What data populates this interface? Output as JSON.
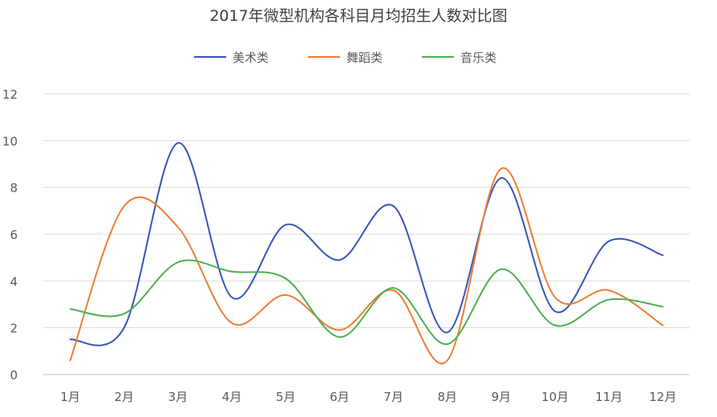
{
  "chart_data": {
    "type": "line",
    "title": "2017年微型机构各科目月均招生人数对比图",
    "categories": [
      "1月",
      "2月",
      "3月",
      "4月",
      "5月",
      "6月",
      "7月",
      "8月",
      "9月",
      "10月",
      "11月",
      "12月"
    ],
    "series": [
      {
        "name": "美术类",
        "color": "#3355BB",
        "values": [
          1.5,
          2.0,
          9.9,
          3.3,
          6.4,
          4.9,
          7.2,
          1.8,
          8.4,
          2.7,
          5.7,
          5.1
        ]
      },
      {
        "name": "舞蹈类",
        "color": "#ED7D31",
        "values": [
          0.6,
          7.2,
          6.3,
          2.2,
          3.4,
          1.9,
          3.6,
          0.6,
          8.8,
          3.3,
          3.6,
          2.1
        ]
      },
      {
        "name": "音乐类",
        "color": "#4CAF50",
        "values": [
          2.8,
          2.6,
          4.8,
          4.4,
          4.1,
          1.6,
          3.7,
          1.3,
          4.5,
          2.1,
          3.2,
          2.9
        ]
      }
    ],
    "y_ticks": [
      "0",
      "2",
      "4",
      "6",
      "8",
      "10",
      "12"
    ],
    "ylim": [
      0,
      12
    ],
    "grid": true,
    "legend_position": "top-center",
    "smooth": true
  }
}
